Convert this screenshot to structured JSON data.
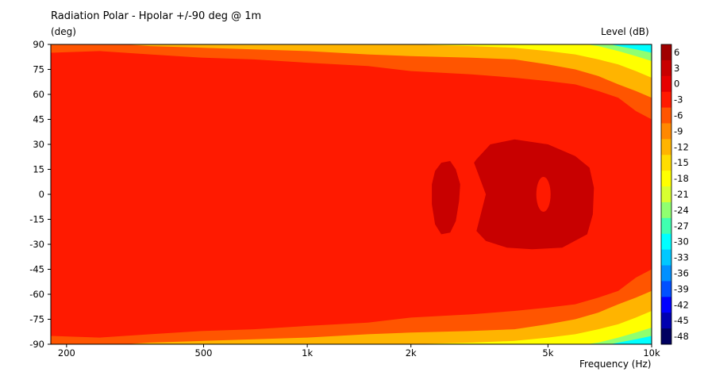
{
  "chart_data": {
    "type": "heatmap",
    "title": "Radiation Polar - Hpolar +/-90 deg @ 1m",
    "ylabel": "(deg)",
    "xlabel": "Frequency  (Hz)",
    "colorbar_label": "Level  (dB)",
    "x_scale": "log",
    "xlim": [
      180,
      10000
    ],
    "ylim": [
      -90,
      90
    ],
    "x_ticks": [
      {
        "value": 200,
        "label": "200"
      },
      {
        "value": 500,
        "label": "500"
      },
      {
        "value": 1000,
        "label": "1k"
      },
      {
        "value": 2000,
        "label": "2k"
      },
      {
        "value": 5000,
        "label": "5k"
      },
      {
        "value": 10000,
        "label": "10k"
      }
    ],
    "y_ticks": [
      {
        "value": 90,
        "label": "90"
      },
      {
        "value": 75,
        "label": "75"
      },
      {
        "value": 60,
        "label": "60"
      },
      {
        "value": 45,
        "label": "45"
      },
      {
        "value": 30,
        "label": "30"
      },
      {
        "value": 15,
        "label": "15"
      },
      {
        "value": 0,
        "label": "0"
      },
      {
        "value": -15,
        "label": "-15"
      },
      {
        "value": -30,
        "label": "-30"
      },
      {
        "value": -45,
        "label": "-45"
      },
      {
        "value": -60,
        "label": "-60"
      },
      {
        "value": -75,
        "label": "-75"
      },
      {
        "value": -90,
        "label": "-90"
      }
    ],
    "colorbar": [
      {
        "value": 6,
        "label": "6",
        "color": "#a00000"
      },
      {
        "value": 3,
        "label": "3",
        "color": "#c80000"
      },
      {
        "value": 0,
        "label": "0",
        "color": "#e60000"
      },
      {
        "value": -3,
        "label": "-3",
        "color": "#ff1a00"
      },
      {
        "value": -6,
        "label": "-6",
        "color": "#ff5500"
      },
      {
        "value": -9,
        "label": "-9",
        "color": "#ff8800"
      },
      {
        "value": -12,
        "label": "-12",
        "color": "#ffb400"
      },
      {
        "value": -15,
        "label": "-15",
        "color": "#ffdd00"
      },
      {
        "value": -18,
        "label": "-18",
        "color": "#ffff00"
      },
      {
        "value": -21,
        "label": "-21",
        "color": "#d8ff30"
      },
      {
        "value": -24,
        "label": "-24",
        "color": "#90ff70"
      },
      {
        "value": -27,
        "label": "-27",
        "color": "#40ffb0"
      },
      {
        "value": -30,
        "label": "-30",
        "color": "#00ffff"
      },
      {
        "value": -33,
        "label": "-33",
        "color": "#00c8ff"
      },
      {
        "value": -36,
        "label": "-36",
        "color": "#0090ff"
      },
      {
        "value": -39,
        "label": "-39",
        "color": "#0050ff"
      },
      {
        "value": -42,
        "label": "-42",
        "color": "#0000ff"
      },
      {
        "value": -45,
        "label": "-45",
        "color": "#0000b0"
      },
      {
        "value": -48,
        "label": "-48",
        "color": "#000060"
      }
    ],
    "contours": [
      {
        "level": -6,
        "color": "#ff5500",
        "freq": [
          180,
          250,
          350,
          500,
          700,
          1000,
          1500,
          2000,
          3000,
          4000,
          5000,
          6000,
          7000,
          8000,
          9000,
          10000
        ],
        "angle": [
          85,
          86,
          84,
          82,
          81,
          79,
          77,
          74,
          72,
          70,
          68,
          66,
          62,
          58,
          50,
          45
        ]
      },
      {
        "level": -12,
        "color": "#ffb400",
        "freq": [
          250,
          350,
          500,
          700,
          1000,
          1500,
          2000,
          3000,
          4000,
          5000,
          6000,
          7000,
          8000,
          9000,
          10000
        ],
        "angle": [
          91,
          89,
          88,
          87,
          86,
          84,
          83,
          82,
          81,
          78,
          75,
          71,
          66,
          62,
          58
        ]
      },
      {
        "level": -18,
        "color": "#ffff00",
        "freq": [
          1500,
          2000,
          3000,
          4000,
          5000,
          6000,
          7000,
          8000,
          9000,
          10000
        ],
        "angle": [
          91,
          90,
          89,
          88,
          86,
          84,
          81,
          78,
          74,
          70
        ]
      },
      {
        "level": -24,
        "color": "#90ff70",
        "freq": [
          6000,
          7000,
          8000,
          9000,
          10000
        ],
        "angle": [
          91,
          89,
          86,
          83,
          80
        ]
      },
      {
        "level": -30,
        "color": "#00ffff",
        "freq": [
          7200,
          8000,
          9000,
          10000
        ],
        "angle": [
          91,
          89,
          87,
          85
        ]
      }
    ],
    "islands": [
      {
        "level": 3,
        "color": "#c80000",
        "freq": [
          2350,
          2450,
          2600,
          2700,
          2780,
          2760,
          2700,
          2600,
          2450,
          2350,
          2300,
          2300
        ],
        "angle": [
          14,
          19,
          20,
          15,
          6,
          -4,
          -16,
          -23,
          -24,
          -18,
          -6,
          6
        ]
      },
      {
        "level": 3,
        "color": "#c80000",
        "freq": [
          3100,
          3400,
          4000,
          5000,
          6000,
          6600,
          6800,
          6750,
          6500,
          5500,
          4500,
          3800,
          3300,
          3100,
          3300,
          3050
        ],
        "angle": [
          21,
          30,
          33,
          30,
          23,
          16,
          4,
          -12,
          -24,
          -32,
          -33,
          -32,
          -28,
          -22,
          0,
          19
        ]
      }
    ]
  }
}
